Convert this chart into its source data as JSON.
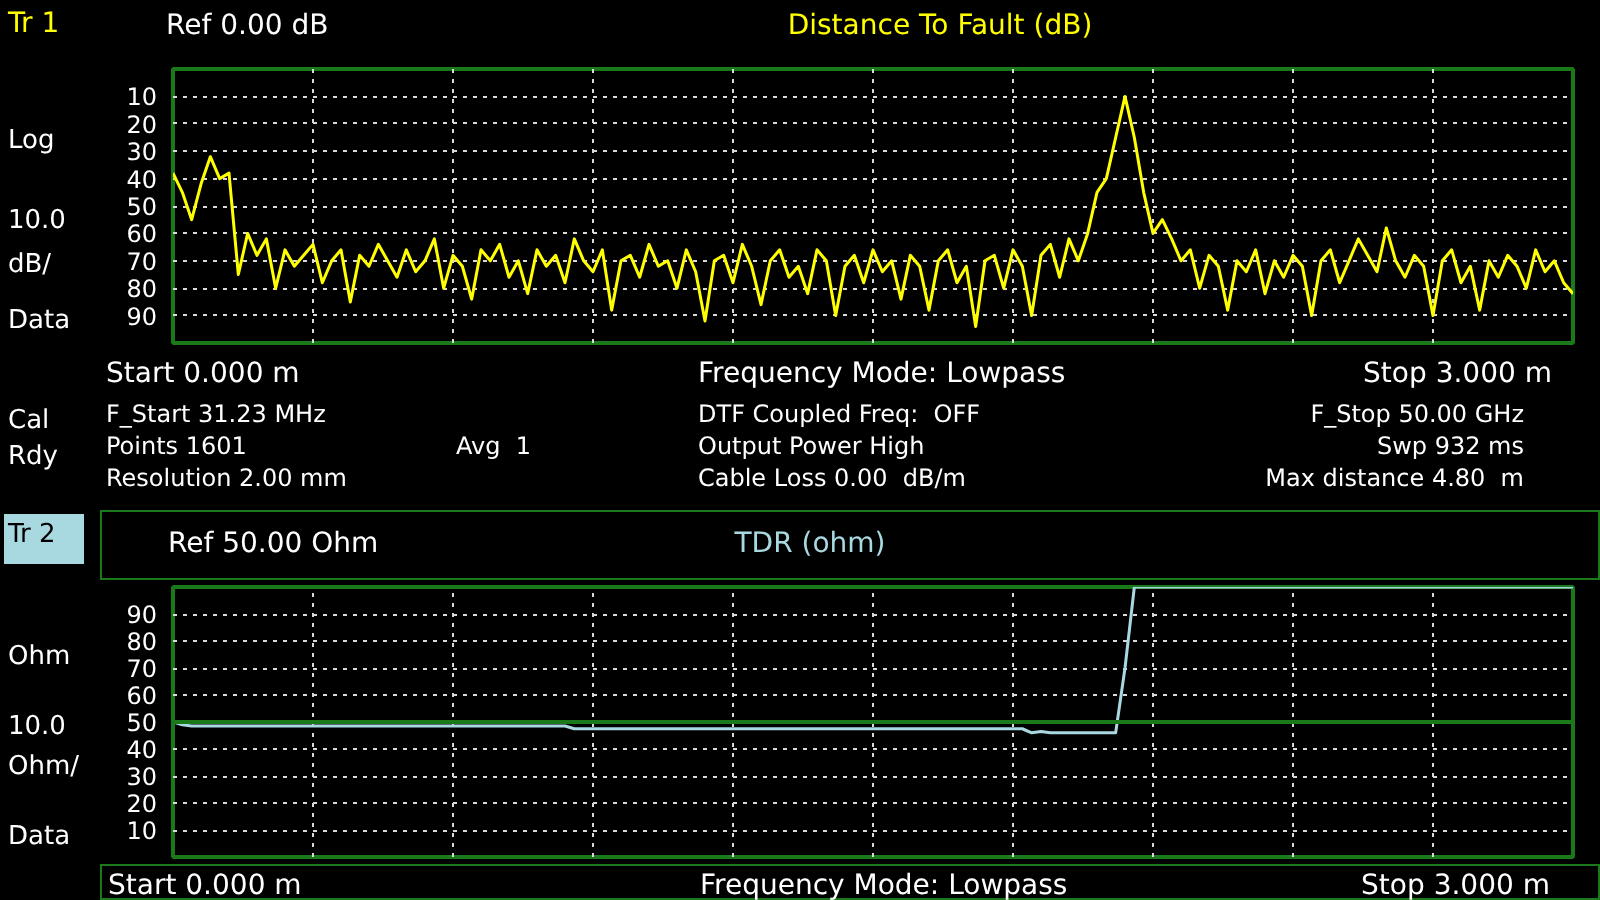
{
  "chart_data": [
    {
      "type": "line",
      "title": "Distance To Fault (dB)",
      "subtitle": "Ref 0.00 dB",
      "annotations": [
        "Tr 1",
        "Log",
        "10.0",
        "dB/",
        "Data",
        "Cal",
        "Rdy",
        "Start 0.000 m",
        "Frequency Mode: Lowpass",
        "Stop 3.000 m",
        "F_Start 31.23 MHz",
        "Points 1601",
        "Resolution 2.00 mm",
        "Avg   1",
        "DTF Coupled Freq:  OFF",
        "Output Power High",
        "Cable Loss 0.00  dB/m",
        "F_Stop 50.00 GHz",
        "Swp 932 ms",
        "Max distance 4.80  m"
      ],
      "categories": [
        null,
        null,
        null,
        null,
        null,
        null,
        null,
        null,
        null,
        null,
        null,
        null,
        null,
        null,
        null,
        null,
        null,
        null,
        null,
        null,
        null,
        null,
        null,
        null,
        null,
        null,
        null,
        null,
        null,
        null,
        null,
        null,
        null,
        null,
        null,
        null,
        null,
        null,
        null,
        null,
        null,
        null,
        null,
        null,
        null,
        null,
        null,
        null,
        null,
        null,
        null,
        null,
        null,
        null,
        null,
        null,
        null,
        null,
        null,
        null,
        null,
        null,
        null,
        null,
        null,
        null,
        null,
        null,
        null,
        null,
        null,
        null,
        null,
        null,
        null,
        null,
        null,
        null,
        null,
        null,
        null,
        null,
        null,
        null,
        null,
        null,
        null,
        null,
        null,
        null,
        null,
        null,
        null,
        null,
        null,
        null,
        null,
        null,
        null,
        null,
        null,
        null,
        null,
        null,
        null,
        null,
        null,
        null,
        null,
        null,
        null,
        null,
        null,
        null,
        null,
        null,
        null,
        null,
        null,
        null,
        null,
        null,
        null,
        null,
        null,
        null,
        null,
        null,
        null,
        null,
        null,
        null,
        null,
        null,
        null,
        null,
        null,
        null,
        null,
        null,
        null,
        null,
        null,
        null,
        null,
        null,
        null,
        null,
        null,
        null,
        null
      ],
      "ylim": [
        100,
        0
      ],
      "yticks": [
        10,
        20,
        30,
        40,
        50,
        60,
        70,
        80,
        90
      ],
      "grid": true,
      "tick_labels": "y",
      "series": [
        {
          "color": "#ffff00",
          "values": [
            38,
            45,
            55,
            42,
            32,
            40,
            38,
            75,
            60,
            68,
            62,
            80,
            66,
            72,
            68,
            64,
            78,
            70,
            66,
            85,
            68,
            72,
            64,
            70,
            76,
            66,
            74,
            70,
            62,
            80,
            68,
            72,
            84,
            66,
            70,
            64,
            76,
            70,
            82,
            66,
            72,
            68,
            78,
            62,
            70,
            74,
            66,
            88,
            70,
            68,
            76,
            64,
            72,
            70,
            80,
            66,
            74,
            92,
            70,
            68,
            78,
            64,
            72,
            86,
            70,
            66,
            76,
            72,
            82,
            66,
            70,
            90,
            72,
            68,
            78,
            66,
            74,
            70,
            84,
            68,
            72,
            88,
            70,
            66,
            78,
            72,
            94,
            70,
            68,
            80,
            66,
            72,
            90,
            68,
            64,
            76,
            62,
            70,
            60,
            45,
            40,
            25,
            10,
            25,
            45,
            60,
            55,
            62,
            70,
            66,
            80,
            68,
            72,
            88,
            70,
            74,
            66,
            82,
            70,
            76,
            68,
            72,
            90,
            70,
            66,
            78,
            70,
            62,
            68,
            74,
            58,
            70,
            76,
            68,
            72,
            90,
            70,
            66,
            78,
            72,
            88,
            70,
            76,
            68,
            72,
            80,
            66,
            74,
            70,
            78,
            82
          ]
        }
      ]
    },
    {
      "type": "line",
      "title": "TDR (ohm)",
      "subtitle": "Ref 50.00 Ohm",
      "annotations": [
        "Tr 2",
        "Ohm",
        "10.0",
        "Ohm/",
        "Data",
        "Start 0.000 m",
        "Frequency Mode: Lowpass",
        "Stop 3.000 m"
      ],
      "categories": [
        null,
        null,
        null,
        null,
        null,
        null,
        null,
        null,
        null,
        null,
        null,
        null,
        null,
        null,
        null,
        null,
        null,
        null,
        null,
        null,
        null,
        null,
        null,
        null,
        null,
        null,
        null,
        null,
        null,
        null,
        null,
        null,
        null,
        null,
        null,
        null,
        null,
        null,
        null,
        null,
        null,
        null,
        null,
        null,
        null,
        null,
        null,
        null,
        null,
        null,
        null,
        null,
        null,
        null,
        null,
        null,
        null,
        null,
        null,
        null,
        null,
        null,
        null,
        null,
        null,
        null,
        null,
        null,
        null,
        null,
        null,
        null,
        null,
        null,
        null,
        null,
        null,
        null,
        null,
        null,
        null,
        null,
        null,
        null,
        null,
        null,
        null,
        null,
        null,
        null,
        null,
        null,
        null,
        null,
        null,
        null,
        null,
        null,
        null,
        null,
        null,
        null,
        null,
        null,
        null,
        null,
        null,
        null,
        null,
        null,
        null,
        null,
        null,
        null,
        null,
        null,
        null,
        null,
        null,
        null,
        null,
        null,
        null,
        null,
        null,
        null,
        null,
        null,
        null,
        null,
        null,
        null,
        null,
        null,
        null,
        null,
        null,
        null,
        null,
        null,
        null,
        null,
        null,
        null,
        null,
        null,
        null,
        null,
        null,
        null,
        null
      ],
      "ylim": [
        0,
        100
      ],
      "yticks": [
        10,
        20,
        30,
        40,
        50,
        60,
        70,
        80,
        90
      ],
      "grid": true,
      "tick_labels": "y",
      "ref_lines": [
        {
          "axis": "y",
          "value": 50,
          "color": "#1a7a1a"
        }
      ],
      "series": [
        {
          "color": "#a8d8e0",
          "values": [
            50,
            49,
            48.5,
            48.5,
            48.5,
            48.5,
            48.5,
            48.5,
            48.5,
            48.5,
            48.5,
            48.5,
            48.5,
            48.5,
            48.5,
            48.5,
            48.5,
            48.5,
            48.5,
            48.5,
            48.5,
            48.5,
            48.5,
            48.5,
            48.5,
            48.5,
            48.5,
            48.5,
            48.5,
            48.5,
            48.5,
            48.5,
            48.5,
            48.5,
            48.5,
            48.5,
            48.5,
            48.5,
            48.5,
            48.5,
            48.5,
            48.5,
            48.5,
            47.5,
            47.5,
            47.5,
            47.5,
            47.5,
            47.5,
            47.5,
            47.5,
            47.5,
            47.5,
            47.5,
            47.5,
            47.5,
            47.5,
            47.5,
            47.5,
            47.5,
            47.5,
            47.5,
            47.5,
            47.5,
            47.5,
            47.5,
            47.5,
            47.5,
            47.5,
            47.5,
            47.5,
            47.5,
            47.5,
            47.5,
            47.5,
            47.5,
            47.5,
            47.5,
            47.5,
            47.5,
            47.5,
            47.5,
            47.5,
            47.5,
            47.5,
            47.5,
            47.5,
            47.5,
            47.5,
            47.5,
            47.5,
            47.5,
            46,
            46.5,
            46,
            46,
            46,
            46,
            46,
            46,
            46,
            46,
            70,
            100,
            100,
            100,
            100,
            100,
            100,
            100,
            100,
            100,
            100,
            100,
            100,
            100,
            100,
            100,
            100,
            100,
            100,
            100,
            100,
            100,
            100,
            100,
            100,
            100,
            100,
            100,
            100,
            100,
            100,
            100,
            100,
            100,
            100,
            100,
            100,
            100,
            100,
            100,
            100,
            100,
            100,
            100,
            100,
            100,
            100,
            100,
            100
          ]
        }
      ]
    }
  ]
}
